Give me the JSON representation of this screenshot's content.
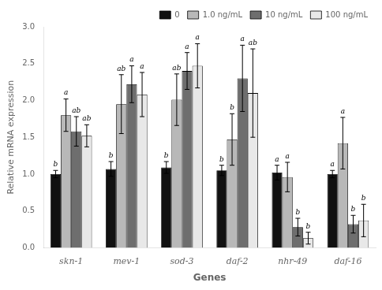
{
  "chart_data": {
    "type": "bar",
    "xlabel": "Genes",
    "ylabel": "Relative mRNA expression",
    "categories": [
      "skn-1",
      "mev-1",
      "sod-3",
      "daf-2",
      "nhr-49",
      "daf-16"
    ],
    "series": [
      {
        "name": "0",
        "color": "#111111",
        "values": [
          1.0,
          1.07,
          1.09,
          1.05,
          1.02,
          1.0
        ],
        "errors": [
          0.05,
          0.1,
          0.08,
          0.07,
          0.1,
          0.05
        ],
        "annotations": [
          "b",
          "b",
          "b",
          "b",
          "a",
          "a"
        ]
      },
      {
        "name": "1.0 ng/mL",
        "color": "#b8b8b8",
        "values": [
          1.8,
          1.95,
          2.01,
          1.47,
          0.96,
          1.42
        ],
        "errors": [
          0.22,
          0.4,
          0.35,
          0.35,
          0.2,
          0.35
        ],
        "annotations": [
          "a",
          "ab",
          "ab",
          "b",
          "a",
          "a"
        ]
      },
      {
        "name": "10 ng/mL",
        "color": "#6e6e6e",
        "values": [
          1.58,
          2.22,
          2.4,
          2.3,
          0.28,
          0.32
        ],
        "errors": [
          0.2,
          0.25,
          0.25,
          0.45,
          0.12,
          0.12
        ],
        "annotations": [
          "ab",
          "a",
          "a",
          "a",
          "b",
          "b"
        ]
      },
      {
        "name": "100 ng/mL",
        "color": "#e8e8e8",
        "values": [
          1.52,
          2.08,
          2.47,
          2.1,
          0.13,
          0.37
        ],
        "errors": [
          0.15,
          0.3,
          0.3,
          0.6,
          0.08,
          0.22
        ],
        "annotations": [
          "ab",
          "a",
          "a",
          "ab",
          "b",
          "b"
        ]
      }
    ],
    "ylim": [
      0.0,
      3.0
    ],
    "yticks": [
      {
        "value": 0,
        "label": "0.0"
      },
      0.5,
      {
        "value": 1,
        "label": "1.0"
      },
      1.5,
      {
        "value": 2,
        "label": "2.0"
      },
      2.5,
      {
        "value": 3,
        "label": "3.0"
      }
    ],
    "grid": false,
    "legend": "upper right"
  }
}
